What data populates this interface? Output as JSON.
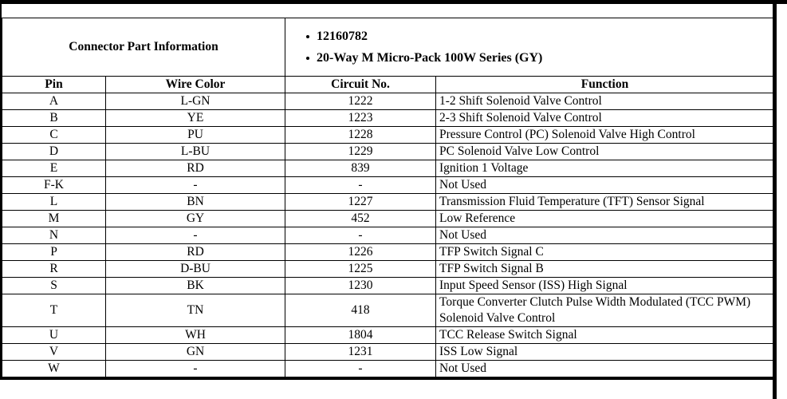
{
  "part_info": {
    "label": "Connector Part Information",
    "bullets": [
      "12160782",
      "20-Way M Micro-Pack 100W Series (GY)"
    ]
  },
  "table": {
    "headers": [
      "Pin",
      "Wire Color",
      "Circuit No.",
      "Function"
    ],
    "rows": [
      [
        "A",
        "L-GN",
        "1222",
        "1-2 Shift Solenoid Valve Control"
      ],
      [
        "B",
        "YE",
        "1223",
        "2-3 Shift Solenoid Valve Control"
      ],
      [
        "C",
        "PU",
        "1228",
        "Pressure Control (PC) Solenoid Valve High Control"
      ],
      [
        "D",
        "L-BU",
        "1229",
        "PC Solenoid Valve Low Control"
      ],
      [
        "E",
        "RD",
        "839",
        "Ignition 1 Voltage"
      ],
      [
        "F-K",
        "-",
        "-",
        "Not Used"
      ],
      [
        "L",
        "BN",
        "1227",
        "Transmission Fluid Temperature (TFT) Sensor Signal"
      ],
      [
        "M",
        "GY",
        "452",
        "Low Reference"
      ],
      [
        "N",
        "-",
        "-",
        "Not Used"
      ],
      [
        "P",
        "RD",
        "1226",
        "TFP Switch Signal C"
      ],
      [
        "R",
        "D-BU",
        "1225",
        "TFP Switch Signal B"
      ],
      [
        "S",
        "BK",
        "1230",
        "Input Speed Sensor (ISS) High Signal"
      ],
      [
        "T",
        "TN",
        "418",
        "Torque Converter Clutch Pulse Width Modulated (TCC PWM) Solenoid Valve Control"
      ],
      [
        "U",
        "WH",
        "1804",
        "TCC Release Switch Signal"
      ],
      [
        "V",
        "GN",
        "1231",
        "ISS Low Signal"
      ],
      [
        "W",
        "-",
        "-",
        "Not Used"
      ]
    ]
  },
  "colors": {
    "border": "#000000",
    "text": "#000000",
    "background": "#ffffff"
  }
}
